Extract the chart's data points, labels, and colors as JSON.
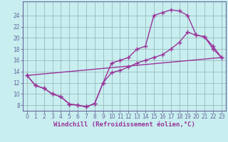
{
  "xlabel": "Windchill (Refroidissement éolien,°C)",
  "bg_color": "#c8eef0",
  "line_color": "#993399",
  "grid_color": "#99bbbb",
  "axis_color": "#666699",
  "text_color": "#993399",
  "xlim": [
    -0.5,
    23.5
  ],
  "ylim": [
    7.0,
    26.5
  ],
  "xticks": [
    0,
    1,
    2,
    3,
    4,
    5,
    6,
    7,
    8,
    9,
    10,
    11,
    12,
    13,
    14,
    15,
    16,
    17,
    18,
    19,
    20,
    21,
    22,
    23
  ],
  "yticks": [
    8,
    10,
    12,
    14,
    16,
    18,
    20,
    22,
    24
  ],
  "line1_x": [
    0,
    1,
    2,
    3,
    4,
    5,
    6,
    7,
    8,
    9,
    10,
    11,
    12,
    13,
    14,
    15,
    16,
    17,
    18,
    19,
    20,
    21,
    22,
    23
  ],
  "line1_y": [
    13.3,
    11.5,
    11.0,
    10.0,
    9.5,
    8.2,
    8.0,
    7.7,
    8.3,
    12.0,
    15.5,
    16.0,
    16.5,
    18.0,
    18.5,
    24.0,
    24.5,
    25.0,
    24.8,
    24.0,
    20.5,
    20.2,
    18.5,
    16.5
  ],
  "line2_x": [
    0,
    1,
    2,
    3,
    4,
    5,
    6,
    7,
    8,
    9,
    10,
    11,
    12,
    13,
    14,
    15,
    16,
    17,
    18,
    19,
    20,
    21,
    22,
    23
  ],
  "line2_y": [
    13.3,
    11.5,
    11.0,
    10.0,
    9.5,
    8.2,
    8.0,
    7.7,
    8.3,
    12.0,
    13.8,
    14.2,
    14.8,
    15.5,
    16.0,
    16.5,
    17.0,
    18.0,
    19.2,
    21.0,
    20.5,
    20.2,
    18.0,
    16.5
  ],
  "line3_x": [
    0,
    23
  ],
  "line3_y": [
    13.3,
    16.5
  ],
  "marker": "+",
  "markersize": 4,
  "markeredgewidth": 1.0,
  "linewidth": 1.0,
  "tick_fontsize": 5.5,
  "label_fontsize": 6.5
}
